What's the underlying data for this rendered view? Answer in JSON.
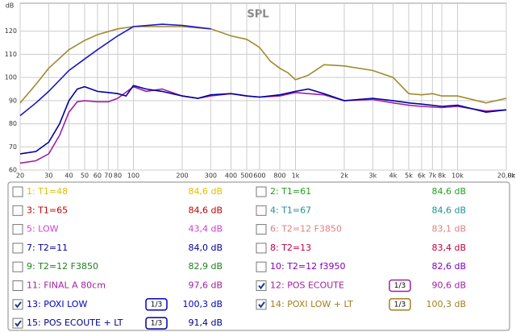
{
  "chart_data": {
    "type": "line",
    "title": "SPL",
    "y_label": "dB",
    "x_unit": "Hz",
    "xscale": "log",
    "grid": true,
    "xlim": [
      20,
      20000
    ],
    "ylim": [
      60,
      130
    ],
    "yticks": [
      60,
      70,
      80,
      90,
      100,
      110,
      120
    ],
    "xticks": [
      20,
      30,
      40,
      50,
      60,
      70,
      80,
      100,
      200,
      300,
      400,
      500,
      600,
      800,
      {
        "value": 1000,
        "label": "1k"
      },
      {
        "value": 2000,
        "label": "2k"
      },
      {
        "value": 3000,
        "label": "3k"
      },
      {
        "value": 4000,
        "label": "4k"
      },
      {
        "value": 5000,
        "label": "5k"
      },
      {
        "value": 6000,
        "label": "6k"
      },
      {
        "value": 7000,
        "label": "7k"
      },
      {
        "value": 8000,
        "label": "8k"
      },
      {
        "value": 10000,
        "label": "10k"
      },
      {
        "value": 20000,
        "label": "20,0k"
      }
    ],
    "series": [
      {
        "name": "14: POXI LOW + LT",
        "color": "#a08a30",
        "x": [
          20,
          25,
          30,
          40,
          50,
          60,
          80,
          100,
          200,
          300,
          400,
          500,
          600,
          700,
          800,
          900,
          1000,
          1200,
          1500,
          2000,
          3000,
          4000,
          5000,
          6000,
          7000,
          8000,
          10000,
          15000,
          20000
        ],
        "values": [
          89,
          97,
          104,
          112,
          116,
          118.5,
          121,
          122,
          122,
          121,
          118,
          116.5,
          113,
          107,
          104,
          102,
          99,
          101,
          105.5,
          105,
          103,
          100,
          93,
          92.5,
          93,
          92,
          92,
          89,
          91
        ]
      },
      {
        "name": "13: POXI LOW",
        "color": "#1818c8",
        "x": [
          20,
          25,
          30,
          40,
          50,
          60,
          80,
          100,
          150,
          200,
          300
        ],
        "values": [
          83.5,
          89,
          94,
          103,
          108,
          112,
          118,
          122,
          123,
          122.5,
          121
        ]
      },
      {
        "name": "12: POS ECOUTE",
        "color": "#a020a0",
        "x": [
          20,
          25,
          30,
          35,
          40,
          45,
          50,
          60,
          70,
          80,
          100,
          120,
          150,
          200,
          250,
          300,
          400,
          500,
          600,
          800,
          1000,
          1200,
          1500,
          2000,
          3000,
          4000,
          5000,
          6000,
          8000,
          10000,
          15000,
          20000
        ],
        "values": [
          63,
          64,
          67,
          75,
          85,
          89.5,
          90,
          89.5,
          89.5,
          91,
          96,
          94,
          95,
          92,
          91,
          92,
          93,
          92,
          91.5,
          92,
          93.5,
          93,
          92.5,
          90,
          90.5,
          89,
          88,
          87.5,
          87,
          87.5,
          85.5,
          86
        ]
      },
      {
        "name": "15: POS ECOUTE + LT",
        "color": "#0000a0",
        "x": [
          20,
          25,
          30,
          35,
          40,
          45,
          50,
          60,
          70,
          80,
          90,
          100,
          120,
          150,
          200,
          250,
          300,
          400,
          500,
          600,
          800,
          1000,
          1200,
          1500,
          2000,
          3000,
          4000,
          5000,
          6000,
          8000,
          10000,
          15000,
          20000
        ],
        "values": [
          67,
          68,
          72,
          80,
          90,
          95,
          96,
          94,
          93.5,
          93,
          92,
          96.5,
          95,
          94,
          92,
          91,
          92.5,
          93,
          92,
          91.5,
          92.5,
          94,
          95,
          93,
          90,
          91,
          90,
          89,
          88.5,
          87.5,
          88,
          85,
          86
        ]
      }
    ]
  },
  "legend_panel": {
    "entries": [
      {
        "label": "1: T1=48",
        "level": "84,6 dB",
        "color": "#e0c000",
        "checked": false
      },
      {
        "label": "2: T1=61",
        "level": "84,6 dB",
        "color": "#20a020",
        "checked": false
      },
      {
        "label": "3: T1=65",
        "level": "84,6 dB",
        "color": "#c00000",
        "checked": false
      },
      {
        "label": "4: T1=67",
        "level": "84,6 dB",
        "color": "#209090",
        "checked": false
      },
      {
        "label": "5: LOW",
        "level": "43,4 dB",
        "color": "#d040d0",
        "checked": false
      },
      {
        "label": "6: T2=12 F3850",
        "level": "83,1 dB",
        "color": "#e08080",
        "checked": false
      },
      {
        "label": "7: T2=11",
        "level": "84,0 dB",
        "color": "#0000a0",
        "checked": false
      },
      {
        "label": "8: T2=13",
        "level": "83,4 dB",
        "color": "#c00040",
        "checked": false
      },
      {
        "label": "9: T2=12 F3850",
        "level": "82,9 dB",
        "color": "#208020",
        "checked": false
      },
      {
        "label": "10: T2=12 f3950",
        "level": "82,6 dB",
        "color": "#8000c0",
        "checked": false
      },
      {
        "label": "11: FINAL A 80cm",
        "level": "97,6 dB",
        "color": "#a020a0",
        "checked": false
      },
      {
        "label": "12: POS ECOUTE",
        "level": "90,6 dB",
        "color": "#a020a0",
        "checked": true,
        "smoothing": "1/3"
      },
      {
        "label": "13: POXI LOW",
        "level": "100,3 dB",
        "color": "#0000c0",
        "checked": true,
        "smoothing": "1/3"
      },
      {
        "label": "14: POXI LOW + LT",
        "level": "100,3 dB",
        "color": "#a08020",
        "checked": true,
        "smoothing": "1/3"
      },
      {
        "label": "15: POS ECOUTE + LT",
        "level": "91,4 dB",
        "color": "#000090",
        "checked": true,
        "smoothing": "1/3"
      }
    ]
  }
}
